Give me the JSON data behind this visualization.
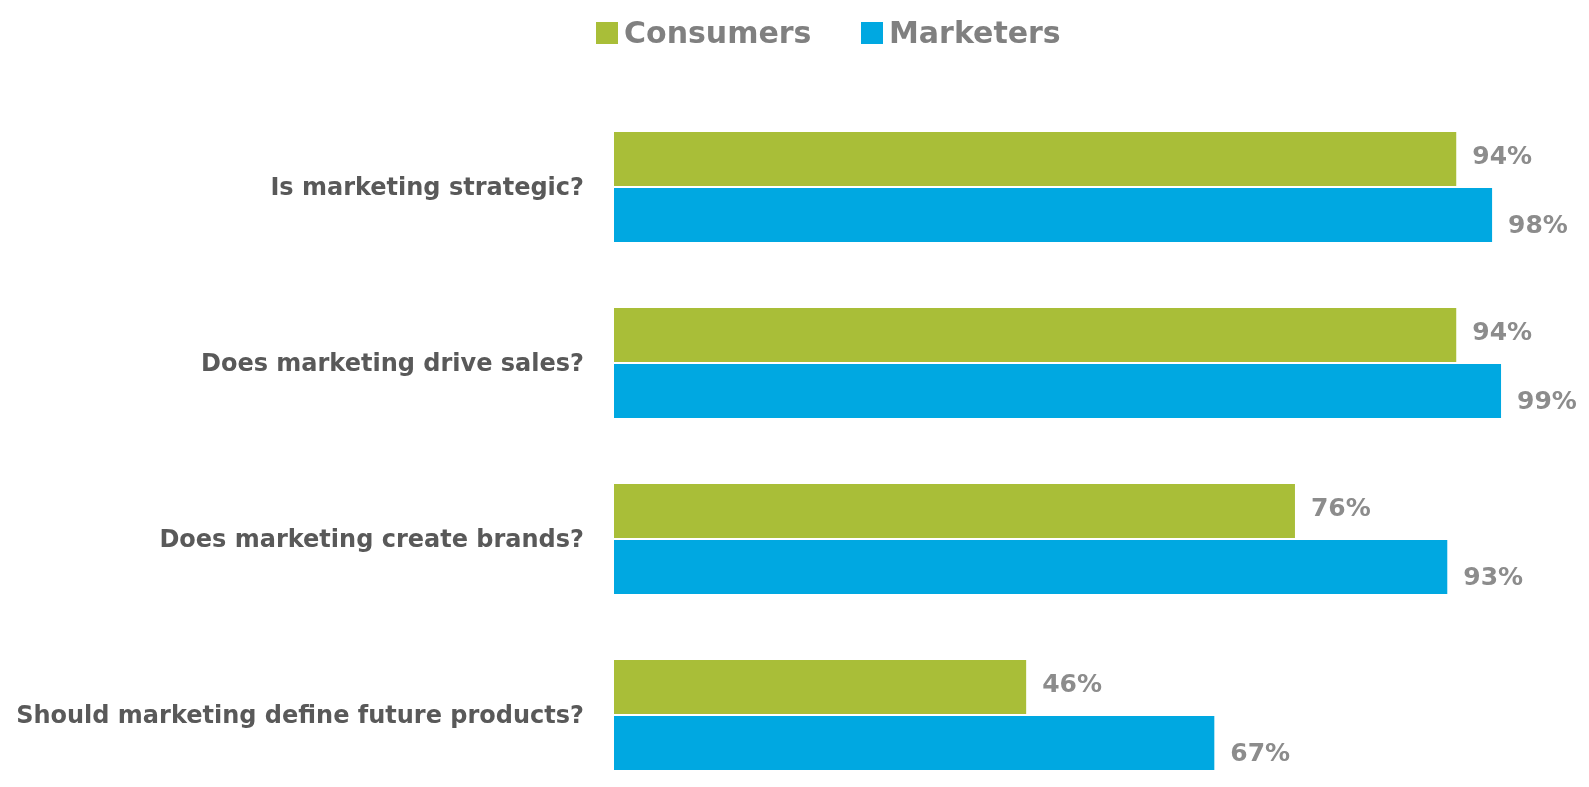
{
  "chart_data": {
    "type": "bar",
    "orientation": "horizontal",
    "categories": [
      "Is marketing strategic?",
      "Does marketing drive sales?",
      "Does  marketing create brands?",
      "Should marketing define future products?"
    ],
    "series": [
      {
        "name": "Consumers",
        "color": "#a9be38",
        "values": [
          94,
          94,
          76,
          46
        ],
        "value_labels": [
          "94%",
          "94%",
          "76%",
          "46%"
        ]
      },
      {
        "name": "Marketers",
        "color": "#00a8e1",
        "values": [
          98,
          99,
          93,
          67
        ],
        "value_labels": [
          "98%",
          "99%",
          "93%",
          "67%"
        ]
      }
    ],
    "tick_labels": "y",
    "legend": "top"
  }
}
